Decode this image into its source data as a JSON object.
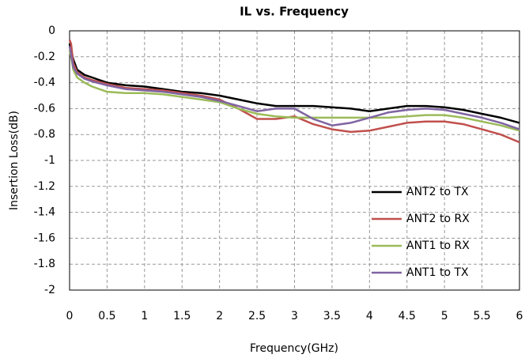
{
  "chart_data": {
    "type": "line",
    "title": "IL vs. Frequency",
    "x_label": "Frequency(GHz)",
    "y_label": "Insertion Loss(dB)",
    "x": [
      0,
      0.02,
      0.05,
      0.1,
      0.2,
      0.3,
      0.5,
      0.75,
      1,
      1.25,
      1.5,
      1.75,
      2,
      2.25,
      2.5,
      2.75,
      3,
      3.25,
      3.5,
      3.75,
      4,
      4.25,
      4.5,
      4.75,
      5,
      5.25,
      5.5,
      5.75,
      6
    ],
    "series": [
      {
        "name": "ANT2 to TX",
        "color": "#000000",
        "values": [
          -0.1,
          -0.15,
          -0.22,
          -0.3,
          -0.34,
          -0.36,
          -0.4,
          -0.42,
          -0.43,
          -0.45,
          -0.47,
          -0.48,
          -0.5,
          -0.53,
          -0.56,
          -0.58,
          -0.58,
          -0.58,
          -0.59,
          -0.6,
          -0.62,
          -0.6,
          -0.58,
          -0.58,
          -0.59,
          -0.61,
          -0.64,
          -0.67,
          -0.71
        ]
      },
      {
        "name": "ANT2 to RX",
        "color": "#c0504d",
        "values": [
          -0.07,
          -0.1,
          -0.25,
          -0.32,
          -0.36,
          -0.38,
          -0.41,
          -0.44,
          -0.45,
          -0.46,
          -0.48,
          -0.5,
          -0.53,
          -0.6,
          -0.68,
          -0.68,
          -0.66,
          -0.72,
          -0.76,
          -0.78,
          -0.77,
          -0.74,
          -0.71,
          -0.7,
          -0.7,
          -0.72,
          -0.76,
          -0.8,
          -0.86
        ]
      },
      {
        "name": "ANT1 to RX",
        "color": "#9bbb59",
        "values": [
          -0.15,
          -0.2,
          -0.3,
          -0.36,
          -0.4,
          -0.43,
          -0.47,
          -0.48,
          -0.48,
          -0.49,
          -0.51,
          -0.53,
          -0.55,
          -0.6,
          -0.64,
          -0.66,
          -0.67,
          -0.67,
          -0.67,
          -0.67,
          -0.67,
          -0.67,
          -0.66,
          -0.65,
          -0.65,
          -0.67,
          -0.7,
          -0.73,
          -0.77
        ]
      },
      {
        "name": "ANT1 to TX",
        "color": "#8064a2",
        "values": [
          -0.12,
          -0.18,
          -0.28,
          -0.33,
          -0.37,
          -0.39,
          -0.42,
          -0.45,
          -0.46,
          -0.47,
          -0.49,
          -0.51,
          -0.54,
          -0.58,
          -0.62,
          -0.6,
          -0.6,
          -0.68,
          -0.73,
          -0.71,
          -0.67,
          -0.63,
          -0.61,
          -0.6,
          -0.61,
          -0.64,
          -0.67,
          -0.71,
          -0.76
        ]
      }
    ],
    "xlim": [
      0,
      6
    ],
    "xticks": [
      0,
      0.5,
      1,
      1.5,
      2,
      2.5,
      3,
      3.5,
      4,
      4.5,
      5,
      5.5,
      6
    ],
    "ylim": [
      -2,
      0
    ],
    "yticks": [
      0,
      -0.2,
      -0.4,
      -0.6,
      -0.8,
      -1,
      -1.2,
      -1.4,
      -1.6,
      -1.8,
      -2
    ],
    "grid": true,
    "legend": "lower right"
  }
}
